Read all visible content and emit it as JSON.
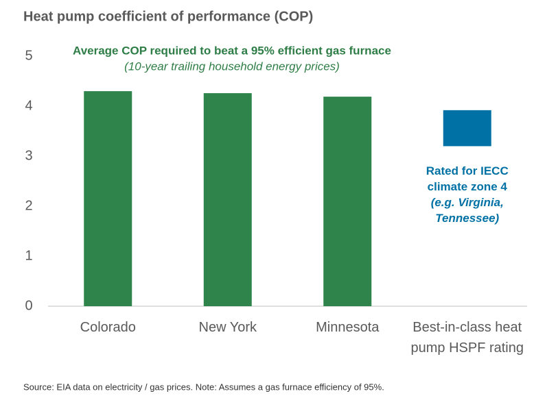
{
  "chart_data": {
    "type": "bar",
    "title": "Heat pump coefficient of performance (COP)",
    "annotation_title": "Average COP required to beat a 95% efficient gas furnace",
    "annotation_subtitle": "(10-year trailing household energy prices)",
    "categories": [
      "Colorado",
      "New York",
      "Minnesota",
      "Best-in-class heat pump HSPF rating"
    ],
    "values": [
      4.3,
      4.26,
      4.19,
      null
    ],
    "color": "#2e844a",
    "range_bar": {
      "low": 3.2,
      "high": 3.92,
      "color": "#0071a4",
      "label": "Rated for IECC climate zone 4",
      "label_detail": "(e.g. Virginia, Tennessee)"
    },
    "ylim": [
      0,
      5
    ],
    "yticks": [
      0,
      1,
      2,
      3,
      4,
      5
    ],
    "source": "Source: EIA data on electricity / gas prices.  Note: Assumes a gas furnace efficiency of 95%."
  }
}
